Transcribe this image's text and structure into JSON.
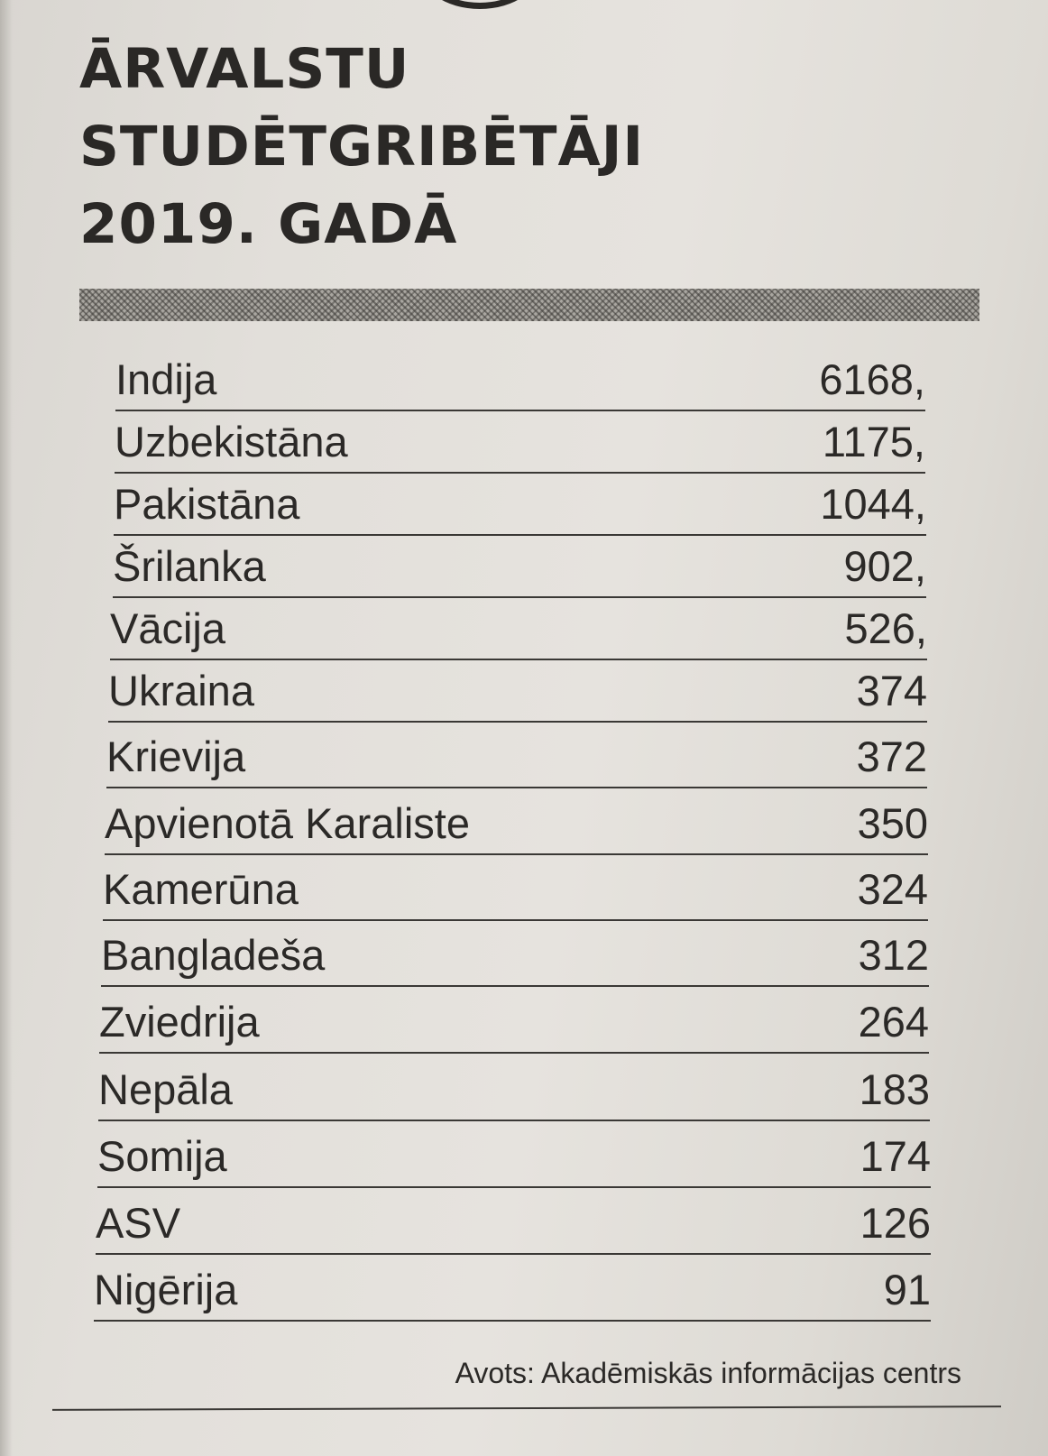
{
  "headline": {
    "line1": "ĀRVALSTU",
    "line2": "STUDĒTGRIBĒTĀJI",
    "line3": "2019. GADĀ"
  },
  "rows": [
    {
      "country": "Indija",
      "value": "6168,"
    },
    {
      "country": "Uzbekistāna",
      "value": "1175,"
    },
    {
      "country": "Pakistāna",
      "value": "1044,"
    },
    {
      "country": "Šrilanka",
      "value": "902,"
    },
    {
      "country": "Vācija",
      "value": "526,"
    },
    {
      "country": "Ukraina",
      "value": "374"
    },
    {
      "country": "Krievija",
      "value": "372"
    },
    {
      "country": "Apvienotā Karaliste",
      "value": "350"
    },
    {
      "country": "Kamerūna",
      "value": "324"
    },
    {
      "country": "Bangladeša",
      "value": "312"
    },
    {
      "country": "Zviedrija",
      "value": "264"
    },
    {
      "country": "Nepāla",
      "value": "183"
    },
    {
      "country": "Somija",
      "value": "174"
    },
    {
      "country": "ASV",
      "value": "126"
    },
    {
      "country": "Nigērija",
      "value": "91"
    }
  ],
  "source": "Avots: Akadēmiskās informācijas centrs"
}
